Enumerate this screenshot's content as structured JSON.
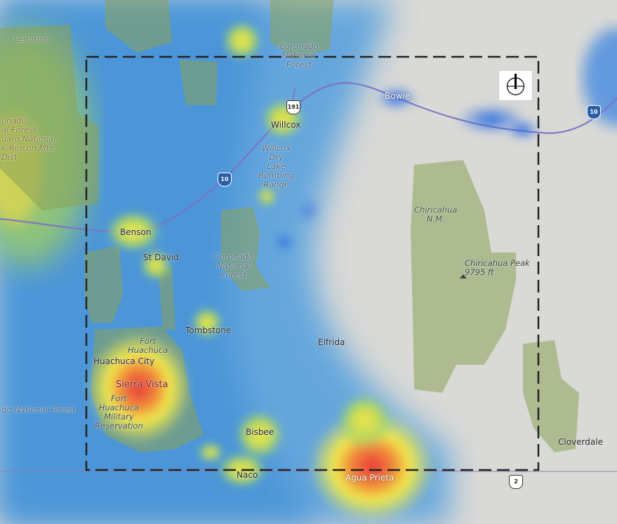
{
  "map": {
    "cities": {
      "lemmon": "Lemmon",
      "willcox": "Willcox",
      "bowie": "Bowie",
      "benson": "Benson",
      "st_david": "St David",
      "tombstone": "Tombstone",
      "elfrida": "Elfrida",
      "huachuca_city": "Huachuca City",
      "sierra_vista": "Sierra Vista",
      "bisbee": "Bisbee",
      "naco": "Naco",
      "agua_prieta": "Agua Prieta",
      "cloverdale": "Cloverdale"
    },
    "areas": {
      "coronado_north": "Coronado\nNational\nForest",
      "coronado_center": "Coronado\nNational\nForest",
      "coronado_left": "onado\nal Forest\nuaro National\nk-Rincon Mtn\nDist",
      "willcox_range": "Willcox\nDry\nLake\nBombing\nRange",
      "chiricahua_nm": "Chiricahua\nN.M.",
      "fort_huachuca": "Fort\nHuachuca",
      "fort_huachuca_res": "Fort\nHuachuca\nMilitary\nReservation",
      "national_forest_sw": "do National Forest"
    },
    "peak": "Chiricahua Peak\n9795 ft",
    "shields": {
      "i10_west": "10",
      "i10_east": "10",
      "us191": "191",
      "route2": "2"
    },
    "colors": {
      "heat_low": "#3f8fd9",
      "heat_mid": "#f2e94a",
      "heat_high": "#e8363a",
      "park_green": "#8ba35a",
      "road": "#7d6fc4",
      "selection_border": "#222222"
    },
    "icons": {
      "north_arrow": "compass-north-icon"
    }
  }
}
